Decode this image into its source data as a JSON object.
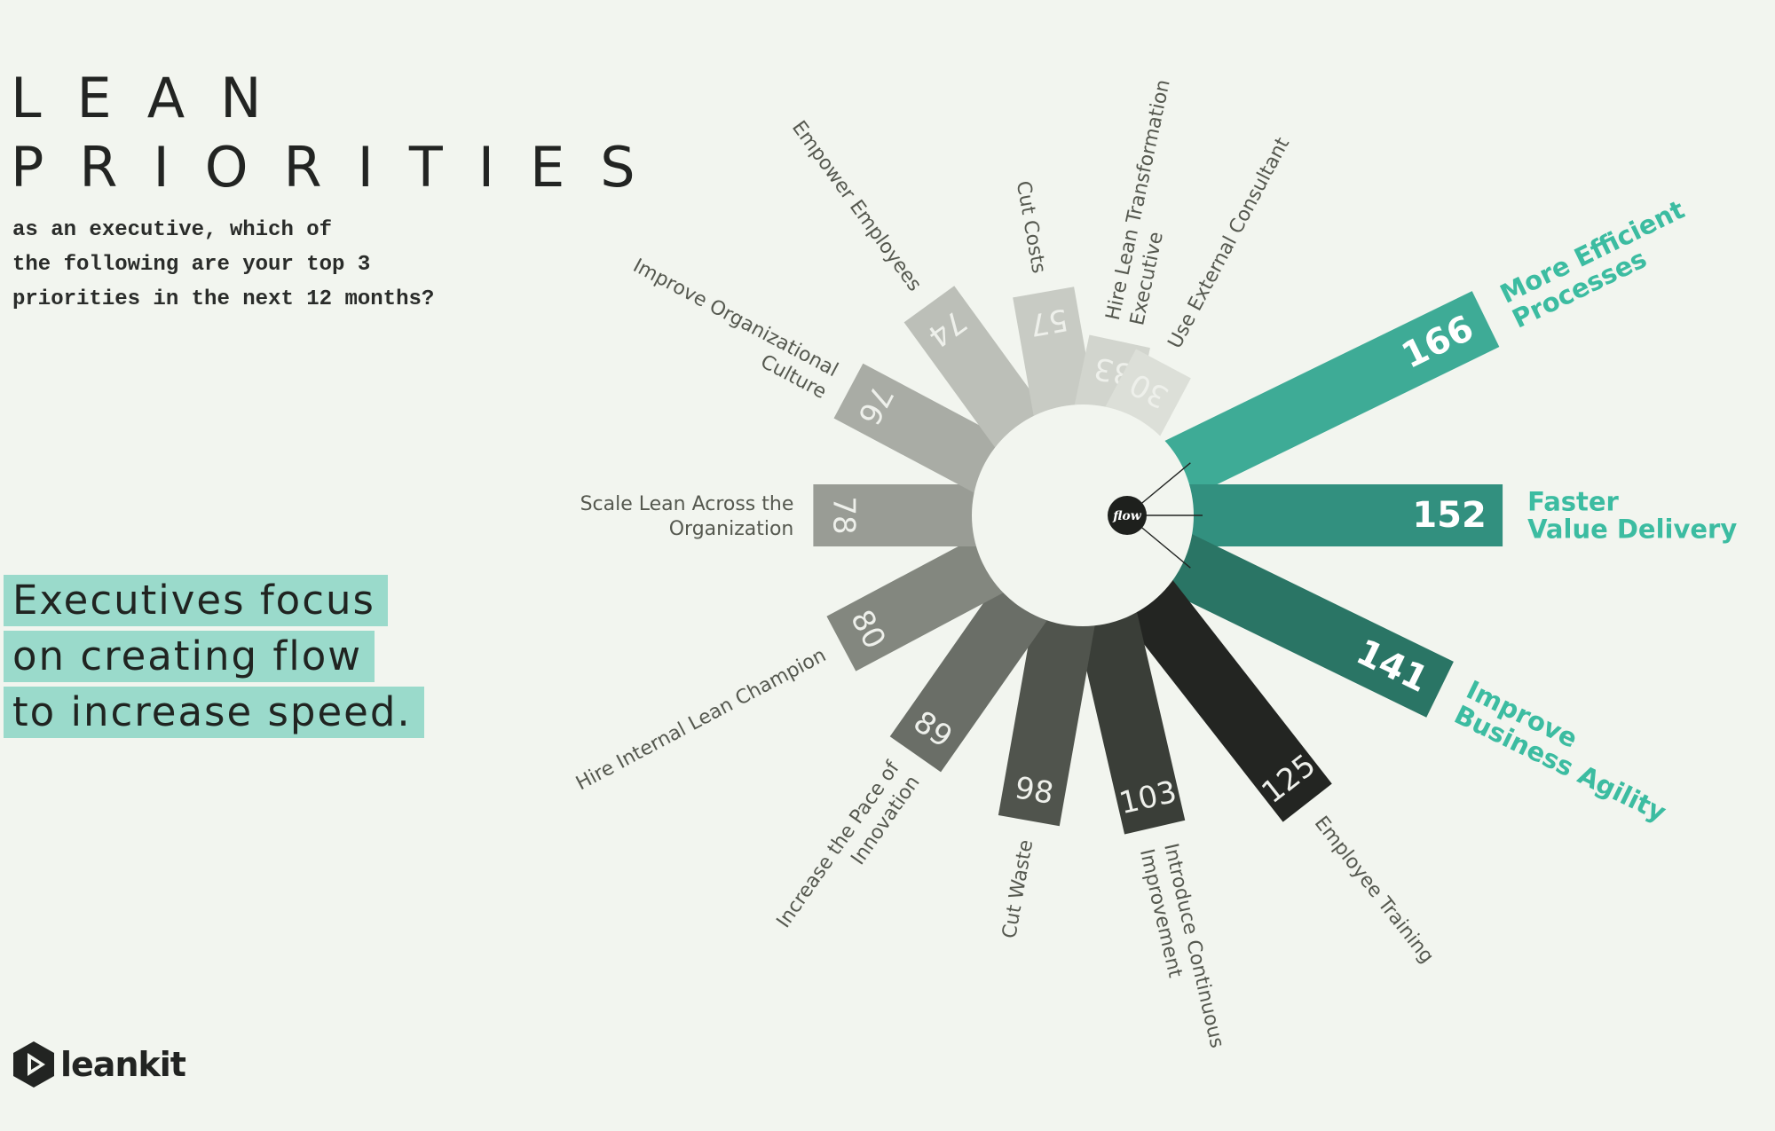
{
  "title": {
    "line1": "LEAN",
    "line2": "PRIORITIES"
  },
  "subtitle": {
    "line1": "as an executive, which of",
    "line2": "the following are your top 3",
    "line3": "priorities in the next 12 months?"
  },
  "headline": {
    "line1": "Executives focus",
    "line2": "on creating flow",
    "line3": "to increase speed."
  },
  "logo": {
    "text": "leankit"
  },
  "chart_data": {
    "type": "bar",
    "subtype": "radial",
    "center_label": "flow",
    "categories": [
      "More Efficient Processes",
      "Faster Value Delivery",
      "Improve Business Agility",
      "Employee Training",
      "Introduce Continuous Improvement",
      "Cut Waste",
      "Increase the Pace of Innovation",
      "Hire Internal Lean Champion",
      "Scale Lean Across the Organization",
      "Improve Organizational Culture",
      "Empower Employees",
      "Cut Costs",
      "Hire Lean Transformation Executive",
      "Use External Consultant"
    ],
    "values": [
      166,
      152,
      141,
      125,
      103,
      98,
      89,
      80,
      78,
      76,
      74,
      57,
      33,
      30
    ],
    "label_lines": [
      [
        "More Efficient",
        "Processes"
      ],
      [
        "Faster",
        "Value Delivery"
      ],
      [
        "Improve",
        "Business Agility"
      ],
      [
        "Employee Training"
      ],
      [
        "Introduce Continuous",
        "Improvement"
      ],
      [
        "Cut Waste"
      ],
      [
        "Increase the Pace of",
        "Innovation"
      ],
      [
        "Hire Internal Lean Champion"
      ],
      [
        "Scale Lean Across the",
        "Organization"
      ],
      [
        "Improve Organizational",
        "Culture"
      ],
      [
        "Empower Employees"
      ],
      [
        "Cut Costs"
      ],
      [
        "Hire Lean Transformation",
        "Executive"
      ],
      [
        "Use External Consultant"
      ]
    ],
    "highlighted": [
      "More Efficient Processes",
      "Faster Value Delivery",
      "Improve Business Agility"
    ],
    "colors": [
      "#3eab96",
      "#32907f",
      "#2a7565",
      "#232522",
      "#3a3e38",
      "#50544d",
      "#6a6e67",
      "#83877f",
      "#999c95",
      "#a9aca5",
      "#bcbfb8",
      "#c8cbc4",
      "#d2d5ce",
      "#dcdfd8"
    ],
    "highlight_text_color": "#3cbca1"
  }
}
